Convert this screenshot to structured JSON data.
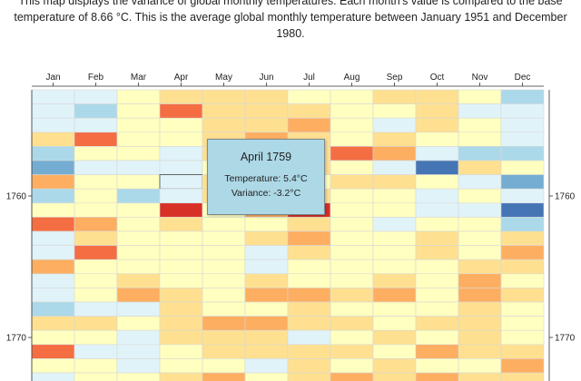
{
  "description": "This map displays the variance of global monthly temperatures. Each month's value is compared to the base temperature of 8.66 °C. This is the average global monthly temperature between January 1951 and December 1980.",
  "tooltip": {
    "title": "April 1759",
    "temperature": "Temperature: 5.4°C",
    "variance": "Variance: -3.2°C"
  },
  "chart_data": {
    "type": "heatmap",
    "x_categories": [
      "Jan",
      "Feb",
      "Mar",
      "Apr",
      "May",
      "Jun",
      "Jul",
      "Aug",
      "Sep",
      "Oct",
      "Nov",
      "Dec"
    ],
    "y_start_year": 1753,
    "y_end_year": 1773,
    "y_tick_labels": [
      "1760",
      "1770"
    ],
    "color_scale": [
      "#4575b4",
      "#74add1",
      "#abd9e9",
      "#e0f3f8",
      "#ffffbf",
      "#fee090",
      "#fdae61",
      "#f46d43",
      "#d73027"
    ],
    "highlighted_cell": {
      "year": 1759,
      "month": "Apr"
    },
    "values": [
      [
        3,
        3,
        4,
        5,
        5,
        5,
        4,
        4,
        5,
        5,
        4,
        2
      ],
      [
        3,
        2,
        4,
        7,
        5,
        5,
        5,
        4,
        4,
        5,
        3,
        3
      ],
      [
        3,
        3,
        4,
        4,
        5,
        5,
        6,
        4,
        3,
        5,
        4,
        3
      ],
      [
        5,
        7,
        4,
        4,
        5,
        6,
        5,
        4,
        5,
        4,
        4,
        3
      ],
      [
        2,
        4,
        4,
        3,
        5,
        5,
        5,
        7,
        6,
        3,
        2,
        2
      ],
      [
        1,
        3,
        3,
        3,
        4,
        5,
        5,
        4,
        3,
        0,
        5,
        4
      ],
      [
        6,
        4,
        4,
        3,
        5,
        5,
        4,
        5,
        5,
        4,
        3,
        1
      ],
      [
        2,
        4,
        2,
        3,
        5,
        5,
        5,
        4,
        4,
        3,
        4,
        3
      ],
      [
        4,
        4,
        4,
        8,
        4,
        6,
        8,
        4,
        4,
        3,
        3,
        0
      ],
      [
        7,
        6,
        4,
        5,
        4,
        4,
        5,
        4,
        3,
        4,
        4,
        2
      ],
      [
        3,
        5,
        4,
        4,
        4,
        5,
        6,
        4,
        4,
        5,
        4,
        5
      ],
      [
        3,
        7,
        4,
        4,
        4,
        3,
        5,
        4,
        4,
        5,
        4,
        6
      ],
      [
        6,
        4,
        4,
        4,
        4,
        3,
        4,
        4,
        4,
        4,
        5,
        5
      ],
      [
        3,
        4,
        5,
        4,
        4,
        5,
        4,
        4,
        5,
        4,
        6,
        4
      ],
      [
        3,
        4,
        6,
        5,
        4,
        6,
        6,
        5,
        6,
        4,
        6,
        5
      ],
      [
        2,
        3,
        3,
        5,
        4,
        4,
        5,
        4,
        4,
        4,
        5,
        4
      ],
      [
        5,
        5,
        4,
        5,
        6,
        6,
        5,
        5,
        4,
        5,
        5,
        4
      ],
      [
        4,
        4,
        3,
        5,
        5,
        5,
        3,
        4,
        5,
        4,
        5,
        4
      ],
      [
        7,
        3,
        3,
        4,
        5,
        5,
        5,
        5,
        4,
        6,
        5,
        5
      ],
      [
        4,
        4,
        3,
        4,
        4,
        3,
        5,
        4,
        5,
        4,
        4,
        6
      ],
      [
        3,
        4,
        4,
        5,
        6,
        4,
        5,
        6,
        5,
        6,
        5,
        5
      ]
    ]
  }
}
